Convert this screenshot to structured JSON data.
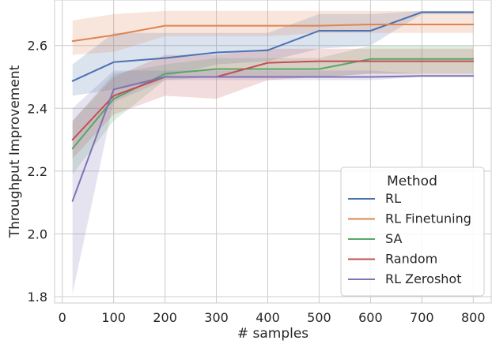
{
  "chart_data": {
    "type": "line",
    "xlabel": "# samples",
    "ylabel": "Throughput Improvement",
    "x": [
      20,
      100,
      200,
      300,
      400,
      500,
      600,
      700,
      800
    ],
    "xlim": [
      -15,
      835
    ],
    "ylim": [
      1.78,
      2.745
    ],
    "xticks": [
      0,
      100,
      200,
      300,
      400,
      500,
      600,
      700,
      800
    ],
    "yticks": [
      1.8,
      2.0,
      2.2,
      2.4,
      2.6
    ],
    "ytick_labels": [
      "1.8",
      "2.0",
      "2.2",
      "2.4",
      "2.6"
    ],
    "grid": true,
    "legend": {
      "title": "Method",
      "placement": "lower-right"
    },
    "series": [
      {
        "name": "RL",
        "color": "#4c72b0",
        "values": [
          2.487,
          2.547,
          2.56,
          2.578,
          2.585,
          2.647,
          2.647,
          2.706,
          2.706
        ],
        "lower": [
          2.44,
          2.46,
          2.5,
          2.54,
          2.55,
          2.59,
          2.6,
          2.7,
          2.7
        ],
        "upper": [
          2.54,
          2.64,
          2.64,
          2.64,
          2.64,
          2.7,
          2.7,
          2.71,
          2.71
        ]
      },
      {
        "name": "RL Finetuning",
        "color": "#dd8452",
        "values": [
          2.614,
          2.633,
          2.663,
          2.663,
          2.663,
          2.663,
          2.667,
          2.667,
          2.667
        ],
        "lower": [
          2.57,
          2.58,
          2.63,
          2.63,
          2.63,
          2.64,
          2.64,
          2.64,
          2.64
        ],
        "upper": [
          2.68,
          2.7,
          2.71,
          2.71,
          2.71,
          2.71,
          2.71,
          2.71,
          2.71
        ]
      },
      {
        "name": "SA",
        "color": "#55a868",
        "values": [
          2.272,
          2.43,
          2.51,
          2.525,
          2.525,
          2.525,
          2.557,
          2.557,
          2.557
        ],
        "lower": [
          2.19,
          2.36,
          2.49,
          2.5,
          2.5,
          2.5,
          2.51,
          2.51,
          2.51
        ],
        "upper": [
          2.36,
          2.51,
          2.54,
          2.56,
          2.56,
          2.56,
          2.6,
          2.6,
          2.6
        ]
      },
      {
        "name": "Random",
        "color": "#c44e52",
        "values": [
          2.3,
          2.44,
          2.5,
          2.5,
          2.545,
          2.55,
          2.55,
          2.55,
          2.55
        ],
        "lower": [
          2.24,
          2.38,
          2.44,
          2.43,
          2.49,
          2.5,
          2.51,
          2.51,
          2.51
        ],
        "upper": [
          2.36,
          2.5,
          2.57,
          2.57,
          2.59,
          2.59,
          2.59,
          2.59,
          2.59
        ]
      },
      {
        "name": "RL Zeroshot",
        "color": "#8172b3",
        "values": [
          2.105,
          2.46,
          2.5,
          2.5,
          2.5,
          2.5,
          2.5,
          2.503,
          2.503
        ],
        "lower": [
          1.81,
          2.42,
          2.49,
          2.49,
          2.49,
          2.49,
          2.49,
          2.5,
          2.5
        ],
        "upper": [
          2.4,
          2.52,
          2.52,
          2.52,
          2.52,
          2.52,
          2.52,
          2.51,
          2.51
        ]
      }
    ]
  }
}
